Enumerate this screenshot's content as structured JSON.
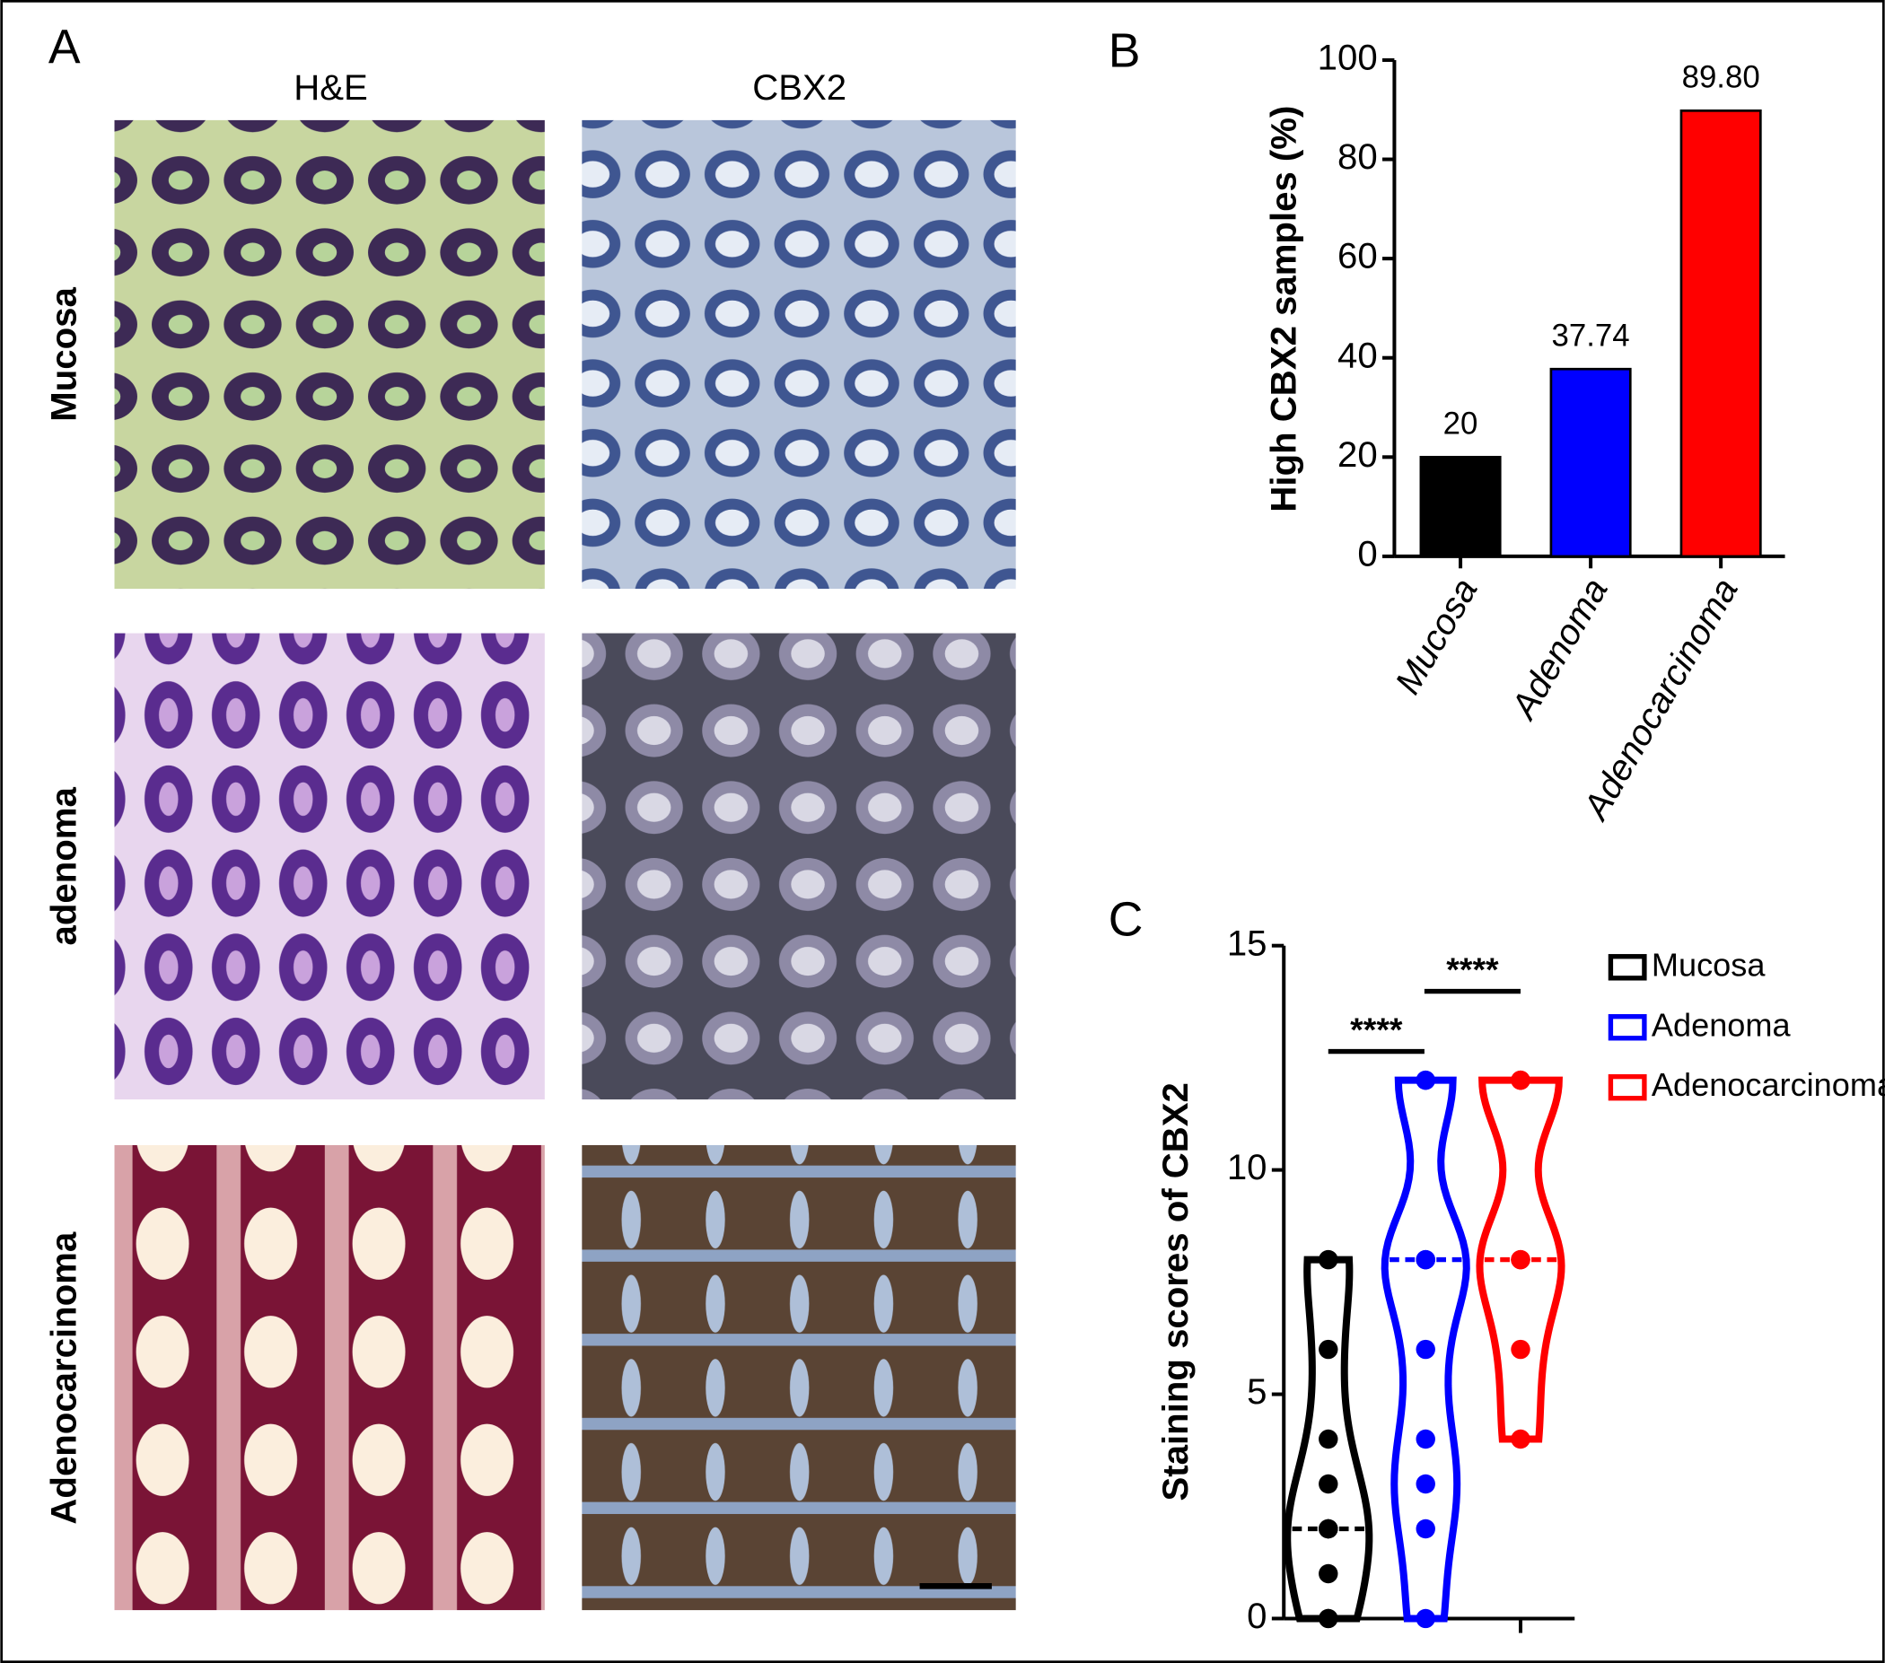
{
  "panel_labels": [
    "A",
    "B",
    "C"
  ],
  "figure_a": {
    "columns": [
      "H&E",
      "CBX2"
    ],
    "rows": [
      "Mucosa",
      "adenoma",
      "Adenocarcinoma"
    ]
  },
  "chart_data": [
    {
      "type": "bar",
      "ylabel": "High CBX2 samples (%)",
      "categories": [
        "Mucosa",
        "Adenoma",
        "Adenocarcinoma"
      ],
      "values": [
        20,
        37.74,
        89.8
      ],
      "value_labels": [
        "20",
        "37.74",
        "89.80"
      ],
      "colors": [
        "#000000",
        "#0000ff",
        "#ff0000"
      ],
      "ylim": [
        0,
        100
      ],
      "yticks": [
        0,
        20,
        40,
        60,
        80,
        100
      ]
    },
    {
      "type": "violin",
      "ylabel": "Staining scores of CBX2",
      "series": [
        {
          "name": "Mucosa",
          "color": "#000000",
          "values": [
            0,
            0,
            1,
            2,
            2,
            2,
            3,
            4,
            6,
            8,
            8
          ]
        },
        {
          "name": "Adenoma",
          "color": "#0000ff",
          "values": [
            0,
            2,
            3,
            4,
            6,
            8,
            8,
            8,
            12,
            12
          ]
        },
        {
          "name": "Adenocarcinoma",
          "color": "#ff0000",
          "values": [
            4,
            6,
            8,
            8,
            8,
            12,
            12,
            12
          ]
        }
      ],
      "annotations": [
        "****",
        "****"
      ],
      "ylim": [
        0,
        15
      ],
      "yticks": [
        0,
        5,
        10,
        15
      ]
    }
  ]
}
